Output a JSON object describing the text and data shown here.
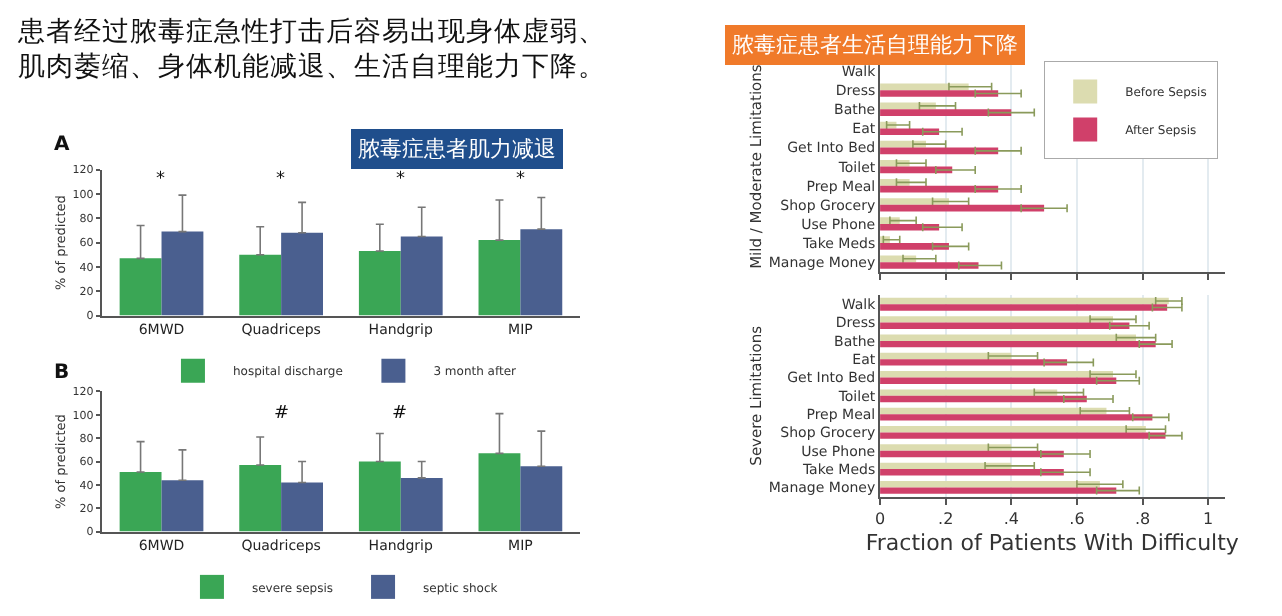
{
  "chart_data": [
    {
      "type": "bar",
      "title": "脓毒症患者肌力减退",
      "ylabel": "% of predicted",
      "categories": [
        "6MWD",
        "Quadriceps",
        "Handgrip",
        "MIP"
      ],
      "ylim": [
        0,
        120
      ],
      "yticks": [
        0,
        20,
        40,
        60,
        80,
        100,
        120
      ],
      "legend": "bottom",
      "grid": false,
      "series": [
        {
          "name": "hospital discharge",
          "color": "#3aa655",
          "values": [
            47,
            50,
            53,
            62
          ],
          "errors": [
            [
              47,
              74
            ],
            [
              50,
              73
            ],
            [
              53,
              75
            ],
            [
              62,
              95
            ]
          ]
        },
        {
          "name": "3 month after",
          "color": "#4a5f8f",
          "values": [
            69,
            68,
            65,
            71
          ],
          "errors": [
            [
              69,
              99
            ],
            [
              68,
              93
            ],
            [
              65,
              89
            ],
            [
              71,
              97
            ]
          ]
        }
      ],
      "annotations": [
        "患者经过脓毒症急性打击后容易出现身体虚弱、肌肉萎缩、身体机能减退、生活自理能力下降。",
        "A",
        "*",
        "*",
        "*",
        "*"
      ]
    },
    {
      "type": "bar",
      "ylabel": "% of predicted",
      "categories": [
        "6MWD",
        "Quadriceps",
        "Handgrip",
        "MIP"
      ],
      "ylim": [
        0,
        120
      ],
      "yticks": [
        0,
        20,
        40,
        60,
        80,
        100,
        120
      ],
      "legend": "bottom",
      "grid": false,
      "series": [
        {
          "name": "severe sepsis",
          "color": "#3aa655",
          "values": [
            51,
            57,
            60,
            67
          ],
          "errors": [
            [
              51,
              77
            ],
            [
              57,
              81
            ],
            [
              60,
              84
            ],
            [
              67,
              101
            ]
          ]
        },
        {
          "name": "septic shock",
          "color": "#4a5f8f",
          "values": [
            44,
            42,
            46,
            56
          ],
          "errors": [
            [
              44,
              70
            ],
            [
              42,
              60
            ],
            [
              46,
              60
            ],
            [
              56,
              86
            ]
          ]
        }
      ],
      "annotations": [
        "B",
        "#",
        "#"
      ]
    },
    {
      "type": "bar",
      "orientation": "horizontal",
      "title": "脓毒症患者生活自理能力下降",
      "ylabel": "Mild / Moderate Limitations",
      "categories": [
        "Walk",
        "Dress",
        "Bathe",
        "Eat",
        "Get Into Bed",
        "Toilet",
        "Prep Meal",
        "Shop Grocery",
        "Use Phone",
        "Take Meds",
        "Manage Money"
      ],
      "xlim": [
        0,
        1.05
      ],
      "xticks": [
        0,
        0.2,
        0.4,
        0.6,
        0.8,
        1
      ],
      "tick_labels": "y",
      "grid": "x",
      "legend": "top right",
      "series": [
        {
          "name": "Before Sepsis",
          "color": "#dcdcb0",
          "values": [
            null,
            0.27,
            0.17,
            0.05,
            0.14,
            0.09,
            0.09,
            0.21,
            0.06,
            0.03,
            0.11
          ],
          "errors": [
            null,
            [
              0.21,
              0.34
            ],
            [
              0.12,
              0.23
            ],
            [
              0.02,
              0.09
            ],
            [
              0.1,
              0.2
            ],
            [
              0.05,
              0.14
            ],
            [
              0.05,
              0.14
            ],
            [
              0.16,
              0.27
            ],
            [
              0.03,
              0.11
            ],
            [
              0.01,
              0.06
            ],
            [
              0.07,
              0.17
            ]
          ]
        },
        {
          "name": "After Sepsis",
          "color": "#d0406a",
          "values": [
            null,
            0.36,
            0.4,
            0.18,
            0.36,
            0.22,
            0.36,
            0.5,
            0.18,
            0.21,
            0.3
          ],
          "errors": [
            null,
            [
              0.29,
              0.43
            ],
            [
              0.33,
              0.47
            ],
            [
              0.13,
              0.25
            ],
            [
              0.29,
              0.43
            ],
            [
              0.17,
              0.29
            ],
            [
              0.29,
              0.43
            ],
            [
              0.43,
              0.57
            ],
            [
              0.13,
              0.25
            ],
            [
              0.16,
              0.27
            ],
            [
              0.24,
              0.37
            ]
          ]
        }
      ]
    },
    {
      "type": "bar",
      "orientation": "horizontal",
      "ylabel": "Severe Limitations",
      "xlabel": "Fraction of Patients With Difficulty",
      "categories": [
        "Walk",
        "Dress",
        "Bathe",
        "Eat",
        "Get Into Bed",
        "Toilet",
        "Prep Meal",
        "Shop Grocery",
        "Use Phone",
        "Take Meds",
        "Manage Money"
      ],
      "xlim": [
        0,
        1.05
      ],
      "xticks": [
        0,
        {
          "value": 0.2,
          "label": ".2"
        },
        {
          "value": 0.4,
          "label": ".4"
        },
        {
          "value": 0.6,
          "label": ".6"
        },
        {
          "value": 0.8,
          "label": ".8"
        },
        1
      ],
      "grid": "x",
      "series": [
        {
          "color": "#dcdcb0",
          "values": [
            0.88,
            0.71,
            0.78,
            0.4,
            0.71,
            0.54,
            0.69,
            0.81,
            0.4,
            0.4,
            0.67
          ],
          "errors": [
            [
              0.84,
              0.92
            ],
            [
              0.64,
              0.78
            ],
            [
              0.72,
              0.84
            ],
            [
              0.33,
              0.48
            ],
            [
              0.64,
              0.78
            ],
            [
              0.47,
              0.62
            ],
            [
              0.61,
              0.76
            ],
            [
              0.75,
              0.87
            ],
            [
              0.33,
              0.48
            ],
            [
              0.32,
              0.47
            ],
            [
              0.6,
              0.74
            ]
          ]
        },
        {
          "color": "#d0406a",
          "values": [
            0.875,
            0.76,
            0.84,
            0.57,
            0.72,
            0.63,
            0.83,
            0.87,
            0.56,
            0.56,
            0.72
          ],
          "errors": [
            [
              0.83,
              0.92
            ],
            [
              0.7,
              0.82
            ],
            [
              0.79,
              0.89
            ],
            [
              0.5,
              0.65
            ],
            [
              0.66,
              0.79
            ],
            [
              0.56,
              0.71
            ],
            [
              0.77,
              0.88
            ],
            [
              0.82,
              0.92
            ],
            [
              0.49,
              0.64
            ],
            [
              0.49,
              0.64
            ],
            [
              0.66,
              0.79
            ]
          ]
        }
      ]
    }
  ]
}
